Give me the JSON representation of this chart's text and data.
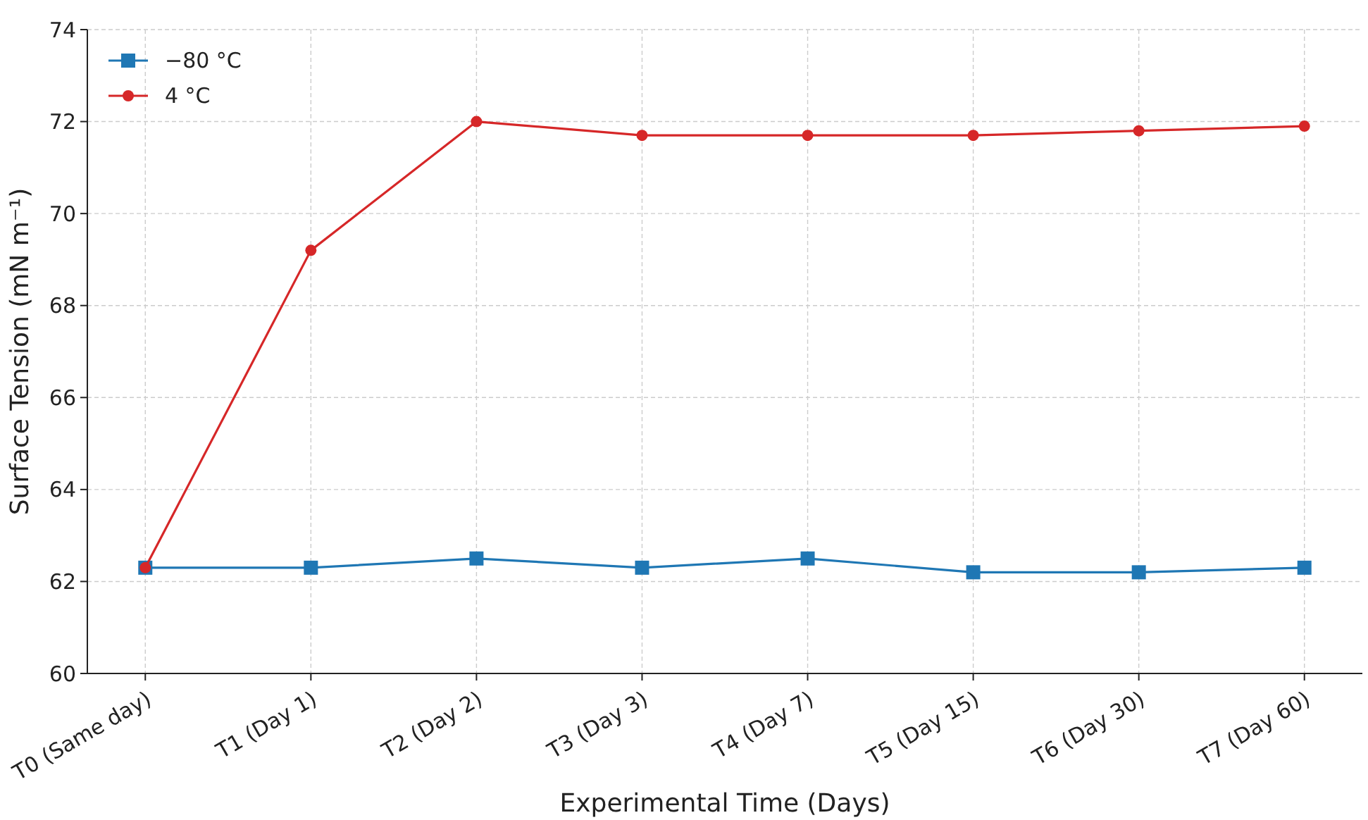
{
  "chart_data": {
    "type": "line",
    "xlabel": "Experimental Time (Days)",
    "ylabel": "Surface Tension (mN m⁻¹)",
    "categories": [
      "T0 (Same day)",
      "T1 (Day 1)",
      "T2 (Day 2)",
      "T3 (Day 3)",
      "T4 (Day 7)",
      "T5 (Day 15)",
      "T6 (Day 30)",
      "T7 (Day 60)"
    ],
    "series": [
      {
        "name": "−80 °C",
        "color": "#1f77b4",
        "marker": "square",
        "values": [
          62.3,
          62.3,
          62.5,
          62.3,
          62.5,
          62.2,
          62.2,
          62.3
        ]
      },
      {
        "name": "4 °C",
        "color": "#d62728",
        "marker": "circle",
        "values": [
          62.3,
          69.2,
          72.0,
          71.7,
          71.7,
          71.7,
          71.8,
          71.9
        ]
      }
    ],
    "ylim": [
      60,
      74
    ],
    "yticks": [
      60,
      62,
      64,
      66,
      68,
      70,
      72,
      74
    ],
    "grid": true,
    "legend": "top left",
    "line_style": "solid"
  }
}
